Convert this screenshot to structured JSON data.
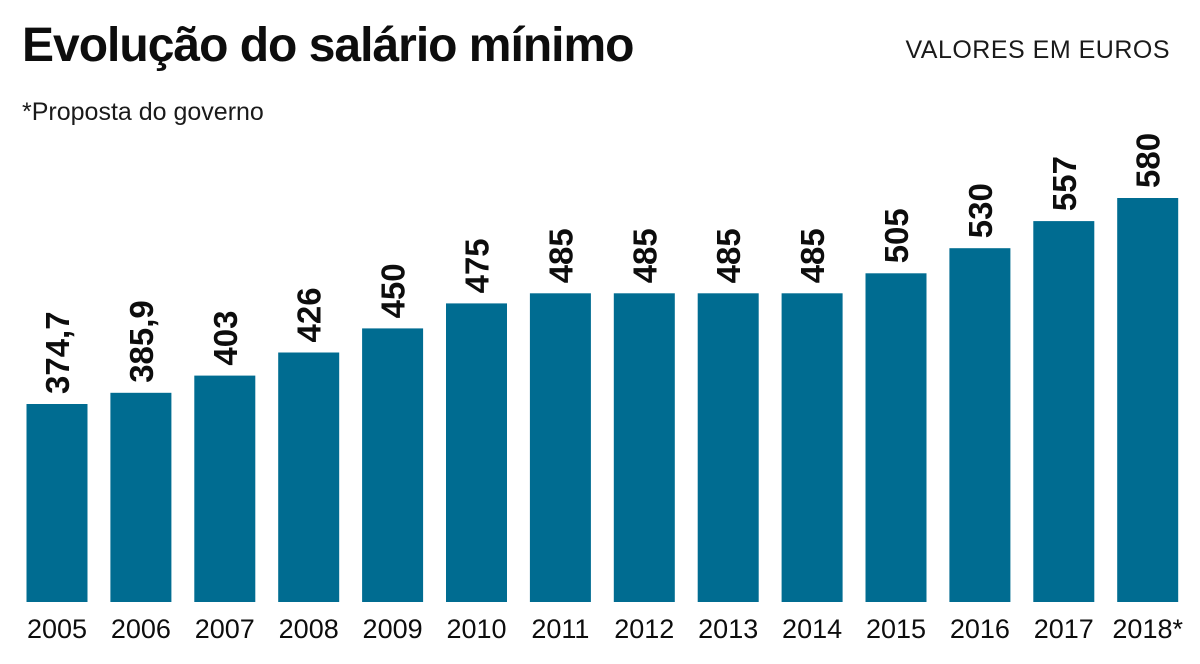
{
  "title": "Evolução do salário mínimo",
  "units_label": "VALORES EM EUROS",
  "footnote": "*Proposta do governo",
  "colors": {
    "bar": "#006c91",
    "text": "#0d0d0d",
    "background": "#ffffff"
  },
  "chart_data": {
    "type": "bar",
    "title": "Evolução do salário mínimo",
    "subtitle": "VALORES EM EUROS",
    "annotation": "*Proposta do governo",
    "categories": [
      "2005",
      "2006",
      "2007",
      "2008",
      "2009",
      "2010",
      "2011",
      "2012",
      "2013",
      "2014",
      "2015",
      "2016",
      "2017",
      "2018*"
    ],
    "values": [
      374.7,
      385.9,
      403,
      426,
      450,
      475,
      485,
      485,
      485,
      485,
      505,
      530,
      557,
      580
    ],
    "value_labels": [
      "374,7",
      "385,9",
      "403",
      "426",
      "450",
      "475",
      "485",
      "485",
      "485",
      "485",
      "505",
      "530",
      "557",
      "580"
    ],
    "xlabel": "",
    "ylabel": "",
    "grid": false,
    "legend": "none",
    "value_label_orientation": "vertical"
  }
}
